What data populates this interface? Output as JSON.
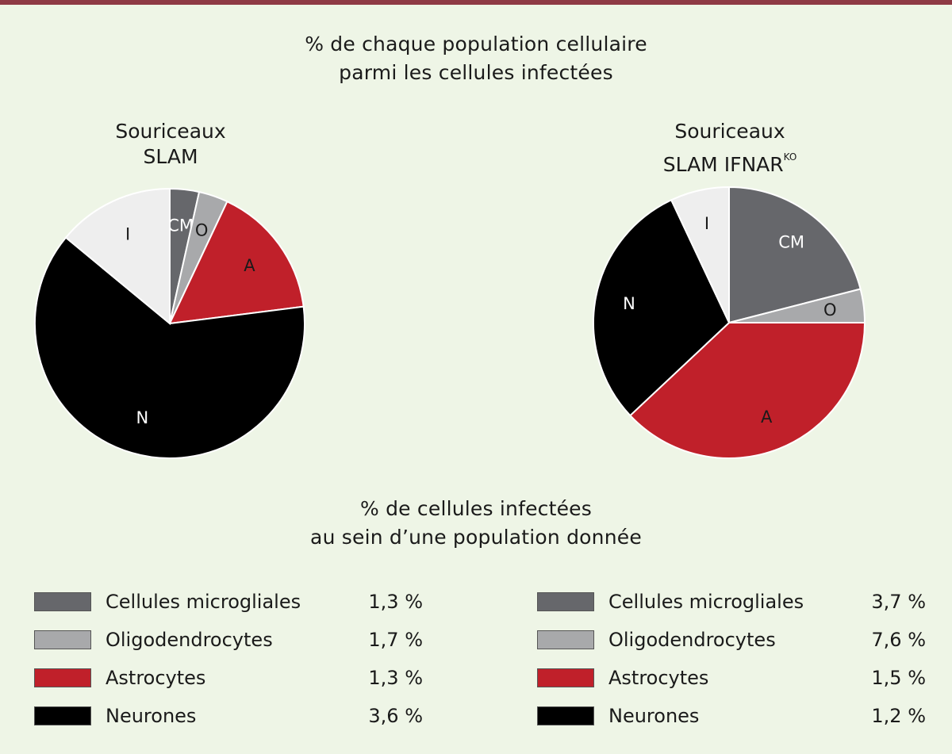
{
  "title_line1": "% de chaque population cellulaire",
  "title_line2": "parmi les cellules infectées",
  "subtitle_line1": "% de cellules infectées",
  "subtitle_line2": "au sein d’une population donnée",
  "colors": {
    "CM": "#66676b",
    "O": "#a8a9ab",
    "A": "#c0202a",
    "N": "#000000",
    "I": "#eeeeee",
    "background": "#eef5e6",
    "top_bar": "#8e3a45"
  },
  "chart_data": [
    {
      "type": "pie",
      "title_line1": "Souriceaux",
      "title_line2": "SLAM",
      "categories": [
        "CM",
        "O",
        "A",
        "N",
        "I"
      ],
      "values": [
        3.5,
        3.5,
        16,
        63,
        14
      ],
      "label_colors": [
        "#ffffff",
        "#1a1a1a",
        "#1a1a1a",
        "#ffffff",
        "#1a1a1a"
      ],
      "legend": [
        {
          "label": "Cellules microgliales",
          "value": "1,3 %",
          "key": "CM"
        },
        {
          "label": "Oligodendrocytes",
          "value": "1,7 %",
          "key": "O"
        },
        {
          "label": "Astrocytes",
          "value": "1,3 %",
          "key": "A"
        },
        {
          "label": "Neurones",
          "value": "3,6 %",
          "key": "N"
        }
      ]
    },
    {
      "type": "pie",
      "title_line1": "Souriceaux",
      "title_line2": "SLAM IFNAR",
      "title_sup": "KO",
      "categories": [
        "CM",
        "O",
        "A",
        "N",
        "I"
      ],
      "values": [
        21,
        4,
        38,
        30,
        7
      ],
      "label_colors": [
        "#ffffff",
        "#1a1a1a",
        "#1a1a1a",
        "#ffffff",
        "#1a1a1a"
      ],
      "legend": [
        {
          "label": "Cellules microgliales",
          "value": "3,7 %",
          "key": "CM"
        },
        {
          "label": "Oligodendrocytes",
          "value": "7,6 %",
          "key": "O"
        },
        {
          "label": "Astrocytes",
          "value": "1,5 %",
          "key": "A"
        },
        {
          "label": "Neurones",
          "value": "1,2 %",
          "key": "N"
        }
      ]
    }
  ]
}
